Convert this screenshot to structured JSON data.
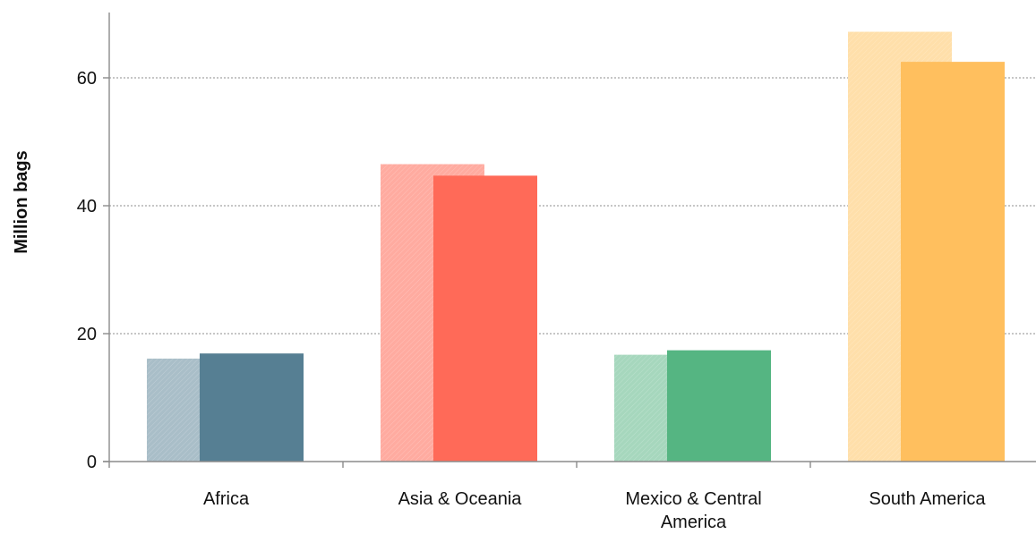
{
  "chart_data": {
    "type": "bar",
    "title": "",
    "xlabel": "",
    "ylabel": "Million bags",
    "ylim": [
      0,
      70
    ],
    "yticks": [
      0,
      20,
      40,
      60
    ],
    "grid": "horizontal dotted",
    "categories": [
      {
        "label_lines": [
          "Africa"
        ],
        "color_light": "#a9bec8",
        "color_dark": "#567f93"
      },
      {
        "label_lines": [
          "Asia & Oceania"
        ],
        "color_light": "#ffaba0",
        "color_dark": "#ff6a58"
      },
      {
        "label_lines": [
          "Mexico & Central",
          "America"
        ],
        "color_light": "#a6d7bd",
        "color_dark": "#55b582"
      },
      {
        "label_lines": [
          "South America"
        ],
        "color_light": "#ffdfaa",
        "color_dark": "#ffbf5e"
      }
    ],
    "series": [
      {
        "values": [
          16.1,
          46.5,
          16.7,
          67.2
        ]
      },
      {
        "values": [
          16.9,
          44.7,
          17.4,
          62.5
        ]
      }
    ]
  }
}
